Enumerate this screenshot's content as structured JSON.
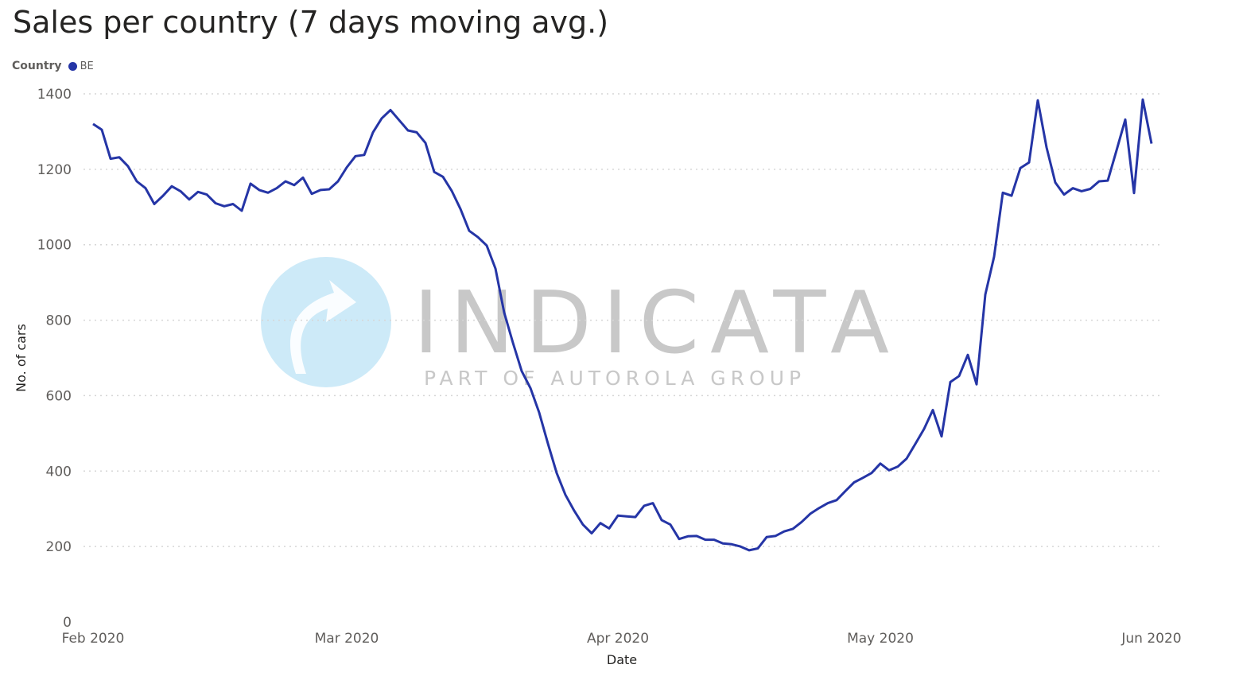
{
  "colors": {
    "series": "#2535a6",
    "grid": "#d6d6d6",
    "watermark_logo": "#cdeaf8",
    "watermark_text": "#c8c8c8"
  },
  "watermark": {
    "brand": "INDICATA",
    "tagline": "PART OF AUTOROLA GROUP"
  },
  "chart_data": {
    "type": "line",
    "title": "Sales per country (7 days moving avg.)",
    "legend": {
      "title": "Country",
      "placement": "top-left"
    },
    "xlabel": "Date",
    "ylabel": "No. of cars",
    "ylim": [
      0,
      1400
    ],
    "yticks": [
      0,
      200,
      400,
      600,
      800,
      1000,
      1200,
      1400
    ],
    "xticks": [
      {
        "date": "2020-02-01",
        "label": "Feb 2020"
      },
      {
        "date": "2020-03-01",
        "label": "Mar 2020"
      },
      {
        "date": "2020-04-01",
        "label": "Apr 2020"
      },
      {
        "date": "2020-05-01",
        "label": "May 2020"
      },
      {
        "date": "2020-06-01",
        "label": "Jun 2020"
      }
    ],
    "grid": true,
    "series": [
      {
        "name": "BE",
        "x": [
          "2020-02-01",
          "2020-02-02",
          "2020-02-03",
          "2020-02-04",
          "2020-02-05",
          "2020-02-06",
          "2020-02-07",
          "2020-02-08",
          "2020-02-09",
          "2020-02-10",
          "2020-02-11",
          "2020-02-12",
          "2020-02-13",
          "2020-02-14",
          "2020-02-15",
          "2020-02-16",
          "2020-02-17",
          "2020-02-18",
          "2020-02-19",
          "2020-02-20",
          "2020-02-21",
          "2020-02-22",
          "2020-02-23",
          "2020-02-24",
          "2020-02-25",
          "2020-02-26",
          "2020-02-27",
          "2020-02-28",
          "2020-02-29",
          "2020-03-01",
          "2020-03-02",
          "2020-03-03",
          "2020-03-04",
          "2020-03-05",
          "2020-03-06",
          "2020-03-07",
          "2020-03-08",
          "2020-03-09",
          "2020-03-10",
          "2020-03-11",
          "2020-03-12",
          "2020-03-13",
          "2020-03-14",
          "2020-03-15",
          "2020-03-16",
          "2020-03-17",
          "2020-03-18",
          "2020-03-19",
          "2020-03-20",
          "2020-03-21",
          "2020-03-22",
          "2020-03-23",
          "2020-03-24",
          "2020-03-25",
          "2020-03-26",
          "2020-03-27",
          "2020-03-28",
          "2020-03-29",
          "2020-03-30",
          "2020-03-31",
          "2020-04-01",
          "2020-04-02",
          "2020-04-03",
          "2020-04-04",
          "2020-04-05",
          "2020-04-06",
          "2020-04-07",
          "2020-04-08",
          "2020-04-09",
          "2020-04-10",
          "2020-04-11",
          "2020-04-12",
          "2020-04-13",
          "2020-04-14",
          "2020-04-15",
          "2020-04-16",
          "2020-04-17",
          "2020-04-18",
          "2020-04-19",
          "2020-04-20",
          "2020-04-21",
          "2020-04-22",
          "2020-04-23",
          "2020-04-24",
          "2020-04-25",
          "2020-04-26",
          "2020-04-27",
          "2020-04-28",
          "2020-04-29",
          "2020-04-30",
          "2020-05-01",
          "2020-05-02",
          "2020-05-03",
          "2020-05-04",
          "2020-05-05",
          "2020-05-06",
          "2020-05-07",
          "2020-05-08",
          "2020-05-09",
          "2020-05-10",
          "2020-05-11",
          "2020-05-12",
          "2020-05-13",
          "2020-05-14",
          "2020-05-15",
          "2020-05-16",
          "2020-05-17",
          "2020-05-18",
          "2020-05-19",
          "2020-05-20",
          "2020-05-21",
          "2020-05-22",
          "2020-05-23",
          "2020-05-24",
          "2020-05-25",
          "2020-05-26",
          "2020-05-27",
          "2020-05-28",
          "2020-05-29",
          "2020-05-30",
          "2020-05-31",
          "2020-06-01"
        ],
        "values": [
          1320,
          1305,
          1228,
          1232,
          1208,
          1168,
          1150,
          1108,
          1130,
          1155,
          1142,
          1120,
          1140,
          1133,
          1110,
          1102,
          1108,
          1090,
          1162,
          1145,
          1138,
          1150,
          1168,
          1158,
          1178,
          1135,
          1145,
          1147,
          1168,
          1205,
          1235,
          1238,
          1298,
          1335,
          1357,
          1330,
          1303,
          1298,
          1270,
          1193,
          1180,
          1143,
          1095,
          1037,
          1020,
          998,
          937,
          820,
          740,
          665,
          620,
          555,
          473,
          395,
          337,
          295,
          258,
          235,
          262,
          248,
          282,
          280,
          278,
          308,
          315,
          270,
          258,
          220,
          227,
          228,
          218,
          218,
          208,
          206,
          200,
          190,
          195,
          225,
          228,
          240,
          247,
          265,
          287,
          302,
          315,
          323,
          347,
          370,
          382,
          395,
          420,
          402,
          412,
          433,
          472,
          512,
          562,
          492,
          636,
          652,
          708,
          630,
          868,
          968,
          1138,
          1130,
          1203,
          1218,
          1383,
          1258,
          1165,
          1133,
          1150,
          1142,
          1148,
          1168,
          1170,
          1250,
          1332,
          1137,
          1385,
          1268
        ]
      }
    ]
  }
}
